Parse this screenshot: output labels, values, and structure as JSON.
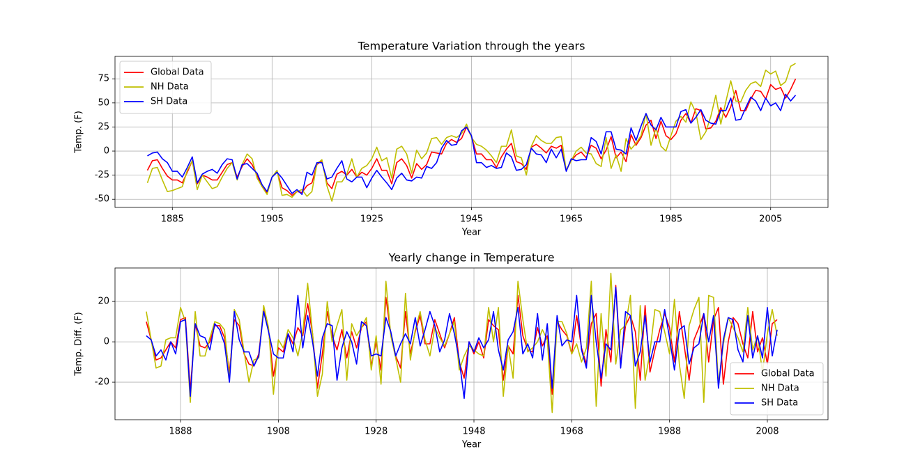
{
  "chart_data": [
    {
      "type": "line",
      "title": "Temperature Variation through the years",
      "xlabel": "Year",
      "ylabel": "Temp. (F)",
      "x": [
        1880,
        1881,
        1882,
        1883,
        1884,
        1885,
        1886,
        1887,
        1888,
        1889,
        1890,
        1891,
        1892,
        1893,
        1894,
        1895,
        1896,
        1897,
        1898,
        1899,
        1900,
        1901,
        1902,
        1903,
        1904,
        1905,
        1906,
        1907,
        1908,
        1909,
        1910,
        1911,
        1912,
        1913,
        1914,
        1915,
        1916,
        1917,
        1918,
        1919,
        1920,
        1921,
        1922,
        1923,
        1924,
        1925,
        1926,
        1927,
        1928,
        1929,
        1930,
        1931,
        1932,
        1933,
        1934,
        1935,
        1936,
        1937,
        1938,
        1939,
        1940,
        1941,
        1942,
        1943,
        1944,
        1945,
        1946,
        1947,
        1948,
        1949,
        1950,
        1951,
        1952,
        1953,
        1954,
        1955,
        1956,
        1957,
        1958,
        1959,
        1960,
        1961,
        1962,
        1963,
        1964,
        1965,
        1966,
        1967,
        1968,
        1969,
        1970,
        1971,
        1972,
        1973,
        1974,
        1975,
        1976,
        1977,
        1978,
        1979,
        1980,
        1981,
        1982,
        1983,
        1984,
        1985,
        1986,
        1987,
        1988,
        1989,
        1990,
        1991,
        1992,
        1993,
        1994,
        1995,
        1996,
        1997,
        1998,
        1999,
        2000,
        2001,
        2002,
        2003,
        2004,
        2005,
        2006,
        2007,
        2008,
        2009,
        2010
      ],
      "series": [
        {
          "name": "Global Data",
          "color": "#ff0000",
          "values": [
            -20,
            -10,
            -9,
            -18,
            -26,
            -30,
            -30,
            -33,
            -22,
            -10,
            -34,
            -25,
            -27,
            -30,
            -30,
            -22,
            -14,
            -12,
            -27,
            -16,
            -8,
            -14,
            -25,
            -37,
            -43,
            -27,
            -21,
            -38,
            -41,
            -46,
            -42,
            -43,
            -36,
            -33,
            -14,
            -10,
            -33,
            -39,
            -24,
            -21,
            -25,
            -19,
            -27,
            -22,
            -25,
            -18,
            -8,
            -20,
            -20,
            -34,
            -12,
            -8,
            -15,
            -28,
            -13,
            -19,
            -14,
            -1,
            -2,
            -3,
            8,
            12,
            9,
            13,
            25,
            15,
            -3,
            -3,
            -9,
            -9,
            -17,
            -6,
            2,
            8,
            -11,
            -13,
            -19,
            4,
            7,
            3,
            -2,
            5,
            3,
            6,
            -20,
            -10,
            -4,
            -1,
            -7,
            6,
            3,
            -8,
            1,
            15,
            -7,
            -1,
            -11,
            17,
            6,
            14,
            27,
            32,
            13,
            31,
            16,
            12,
            18,
            32,
            39,
            29,
            44,
            42,
            23,
            24,
            31,
            45,
            35,
            46,
            63,
            42,
            42,
            54,
            63,
            62,
            54,
            69,
            64,
            66,
            55,
            64,
            75
          ]
        },
        {
          "name": "NH Data",
          "color": "#bfbf00",
          "values": [
            -33,
            -18,
            -17,
            -30,
            -42,
            -41,
            -39,
            -37,
            -20,
            -10,
            -40,
            -25,
            -32,
            -39,
            -37,
            -27,
            -18,
            -12,
            -30,
            -14,
            -3,
            -8,
            -28,
            -37,
            -45,
            -27,
            -20,
            -46,
            -45,
            -48,
            -42,
            -40,
            -47,
            -42,
            -13,
            -9,
            -36,
            -52,
            -32,
            -32,
            -24,
            -8,
            -27,
            -18,
            -15,
            -8,
            4,
            -10,
            -7,
            -28,
            2,
            5,
            -3,
            -23,
            1,
            -8,
            -2,
            13,
            14,
            7,
            14,
            16,
            14,
            18,
            28,
            14,
            7,
            5,
            1,
            -5,
            -12,
            5,
            5,
            22,
            -5,
            -7,
            -25,
            5,
            16,
            11,
            8,
            8,
            14,
            15,
            -20,
            -10,
            0,
            4,
            -2,
            -3,
            -13,
            -16,
            14,
            -18,
            -4,
            -21,
            13,
            2,
            8,
            16,
            39,
            6,
            24,
            5,
            0,
            16,
            31,
            36,
            30,
            51,
            40,
            12,
            20,
            36,
            58,
            28,
            51,
            73,
            52,
            51,
            63,
            70,
            72,
            67,
            84,
            80,
            83,
            68,
            72,
            88,
            91
          ]
        },
        {
          "name": "SH Data",
          "color": "#0000ff",
          "values": [
            -5,
            -2,
            -1,
            -8,
            -12,
            -21,
            -21,
            -27,
            -17,
            -6,
            -33,
            -24,
            -21,
            -19,
            -23,
            -14,
            -8,
            -9,
            -29,
            -14,
            -13,
            -18,
            -23,
            -35,
            -42,
            -27,
            -22,
            -28,
            -36,
            -44,
            -40,
            -45,
            -22,
            -25,
            -12,
            -12,
            -29,
            -27,
            -18,
            -10,
            -29,
            -32,
            -27,
            -27,
            -38,
            -28,
            -20,
            -27,
            -33,
            -40,
            -28,
            -23,
            -30,
            -31,
            -27,
            -28,
            -16,
            -18,
            -12,
            3,
            11,
            6,
            7,
            21,
            25,
            16,
            -12,
            -12,
            -17,
            -15,
            -18,
            -17,
            -2,
            -6,
            -20,
            -19,
            -14,
            3,
            -3,
            -4,
            -12,
            2,
            -7,
            2,
            -21,
            -8,
            -10,
            -9,
            -9,
            14,
            10,
            -3,
            20,
            20,
            2,
            1,
            -3,
            24,
            11,
            26,
            39,
            27,
            22,
            35,
            25,
            25,
            25,
            41,
            43,
            29,
            35,
            43,
            32,
            29,
            28,
            42,
            42,
            55,
            32,
            33,
            45,
            56,
            52,
            42,
            55,
            47,
            50,
            42,
            59,
            52,
            58
          ]
        }
      ],
      "xlim": [
        1873.5,
        2016.5
      ],
      "ylim": [
        -58.5,
        98.3
      ],
      "xticks": [
        1885,
        1905,
        1925,
        1945,
        1965,
        1985,
        2005
      ],
      "yticks": [
        -50,
        -25,
        0,
        25,
        50,
        75
      ],
      "grid": true,
      "legend": "upper left"
    },
    {
      "type": "line",
      "title": "Yearly change in Temperature",
      "xlabel": "Year",
      "ylabel": "Temp. Diff. (F)",
      "x": [
        1881,
        1882,
        1883,
        1884,
        1885,
        1886,
        1887,
        1888,
        1889,
        1890,
        1891,
        1892,
        1893,
        1894,
        1895,
        1896,
        1897,
        1898,
        1899,
        1900,
        1901,
        1902,
        1903,
        1904,
        1905,
        1906,
        1907,
        1908,
        1909,
        1910,
        1911,
        1912,
        1913,
        1914,
        1915,
        1916,
        1917,
        1918,
        1919,
        1920,
        1921,
        1922,
        1923,
        1924,
        1925,
        1926,
        1927,
        1928,
        1929,
        1930,
        1931,
        1932,
        1933,
        1934,
        1935,
        1936,
        1937,
        1938,
        1939,
        1940,
        1941,
        1942,
        1943,
        1944,
        1945,
        1946,
        1947,
        1948,
        1949,
        1950,
        1951,
        1952,
        1953,
        1954,
        1955,
        1956,
        1957,
        1958,
        1959,
        1960,
        1961,
        1962,
        1963,
        1964,
        1965,
        1966,
        1967,
        1968,
        1969,
        1970,
        1971,
        1972,
        1973,
        1974,
        1975,
        1976,
        1977,
        1978,
        1979,
        1980,
        1981,
        1982,
        1983,
        1984,
        1985,
        1986,
        1987,
        1988,
        1989,
        1990,
        1991,
        1992,
        1993,
        1994,
        1995,
        1996,
        1997,
        1998,
        1999,
        2000,
        2001,
        2002,
        2003,
        2004,
        2005,
        2006,
        2007,
        2008,
        2009,
        2010
      ],
      "series": [
        {
          "name": "Global Data",
          "color": "#ff0000",
          "values": [
            10,
            1,
            -9,
            -8,
            -4,
            0,
            -3,
            11,
            12,
            -24,
            9,
            -2,
            -3,
            0,
            8,
            8,
            2,
            -15,
            11,
            8,
            -6,
            -11,
            -12,
            -6,
            16,
            6,
            -17,
            -3,
            -5,
            4,
            -1,
            7,
            3,
            19,
            4,
            -23,
            -6,
            15,
            3,
            -4,
            6,
            -8,
            5,
            -3,
            7,
            10,
            -12,
            0,
            -14,
            22,
            4,
            -7,
            -13,
            15,
            -6,
            5,
            13,
            -1,
            -1,
            11,
            4,
            -3,
            4,
            12,
            -10,
            -18,
            0,
            -6,
            0,
            -8,
            11,
            8,
            6,
            -19,
            -2,
            -6,
            23,
            3,
            -4,
            -5,
            7,
            -2,
            3,
            -26,
            10,
            6,
            3,
            -6,
            13,
            -3,
            -11,
            9,
            14,
            -22,
            6,
            -10,
            28,
            -11,
            8,
            13,
            5,
            -19,
            18,
            -15,
            -4,
            6,
            14,
            7,
            -10,
            15,
            -2,
            -19,
            1,
            7,
            14,
            -10,
            11,
            17,
            -21,
            0,
            12,
            9,
            -1,
            -8,
            15,
            -5,
            2,
            -11,
            9,
            11
          ]
        },
        {
          "name": "NH Data",
          "color": "#bfbf00",
          "values": [
            15,
            1,
            -13,
            -12,
            1,
            2,
            2,
            17,
            10,
            -30,
            15,
            -7,
            -7,
            2,
            10,
            9,
            6,
            -18,
            16,
            11,
            -5,
            -20,
            -9,
            -8,
            18,
            7,
            -26,
            1,
            -3,
            6,
            2,
            -7,
            5,
            29,
            4,
            -27,
            -16,
            20,
            0,
            8,
            16,
            -19,
            9,
            3,
            7,
            12,
            -14,
            3,
            -21,
            30,
            3,
            -8,
            -20,
            24,
            -9,
            6,
            15,
            1,
            -7,
            7,
            2,
            -2,
            4,
            10,
            -14,
            -7,
            -2,
            -4,
            -6,
            -7,
            17,
            0,
            17,
            -27,
            -2,
            -18,
            30,
            11,
            -5,
            -3,
            0,
            6,
            1,
            -35,
            10,
            10,
            4,
            -6,
            -1,
            -10,
            -3,
            30,
            -32,
            14,
            -17,
            34,
            -11,
            6,
            8,
            23,
            -33,
            18,
            -19,
            -5,
            16,
            15,
            5,
            -6,
            21,
            -11,
            -28,
            8,
            16,
            22,
            -30,
            23,
            22,
            -21,
            -1,
            12,
            7,
            2,
            -5,
            17,
            -4,
            3,
            -15,
            4,
            16,
            3
          ]
        },
        {
          "name": "SH Data",
          "color": "#0000ff",
          "values": [
            3,
            1,
            -7,
            -4,
            -9,
            0,
            -6,
            10,
            11,
            -27,
            9,
            3,
            2,
            -4,
            9,
            6,
            -1,
            -20,
            15,
            1,
            -5,
            -5,
            -12,
            -7,
            15,
            5,
            -6,
            -8,
            -8,
            4,
            -5,
            23,
            -3,
            13,
            0,
            -17,
            2,
            9,
            8,
            -19,
            -3,
            5,
            0,
            -11,
            10,
            8,
            -7,
            -6,
            -7,
            12,
            5,
            -7,
            -1,
            4,
            -1,
            12,
            -2,
            6,
            15,
            8,
            -5,
            1,
            14,
            4,
            -9,
            -28,
            0,
            -5,
            2,
            -3,
            1,
            15,
            -4,
            -14,
            1,
            5,
            17,
            -6,
            -1,
            -8,
            14,
            -9,
            9,
            -23,
            13,
            -2,
            1,
            0,
            23,
            -4,
            -13,
            23,
            0,
            -18,
            -1,
            -4,
            27,
            -13,
            15,
            13,
            -12,
            -5,
            13,
            -10,
            0,
            0,
            16,
            2,
            -14,
            6,
            8,
            -11,
            -3,
            -1,
            14,
            0,
            13,
            -23,
            1,
            12,
            11,
            -4,
            -10,
            13,
            -8,
            3,
            -8,
            17,
            -7,
            6
          ]
        }
      ],
      "xlim": [
        1874.6,
        2020.4
      ],
      "ylim": [
        -38.6,
        36.6
      ],
      "xticks": [
        1888,
        1908,
        1928,
        1948,
        1968,
        1988,
        2008
      ],
      "yticks": [
        -20,
        0,
        20
      ],
      "grid": true,
      "legend": "lower right"
    }
  ]
}
